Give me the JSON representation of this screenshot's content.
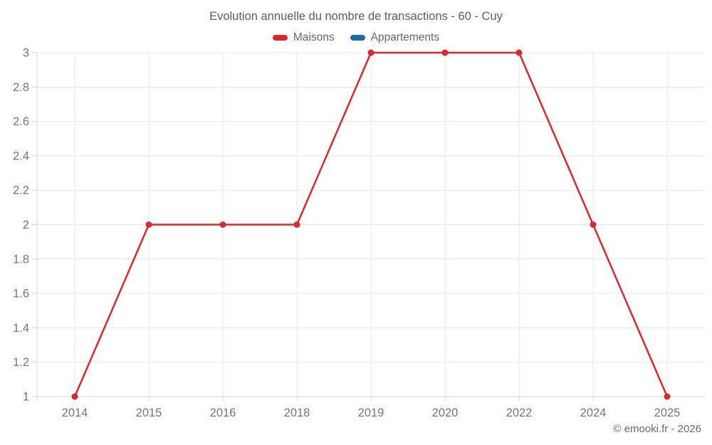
{
  "title": "Evolution annuelle du nombre de transactions - 60 - Cuy",
  "legend": {
    "items": [
      {
        "label": "Maisons",
        "color": "#db282c"
      },
      {
        "label": "Appartements",
        "color": "#1a6ca8"
      }
    ]
  },
  "copyright": "© emooki.fr - 2026",
  "colors": {
    "maisons": "#db282c",
    "appartements": "#1a6ca8",
    "gridline": "#e8e8e8",
    "axis_line": "#d6d6d6",
    "tick_label": "#757575",
    "title_text": "#5c5c5c",
    "legend_text": "#666666",
    "copyright_text": "#6b6b6b"
  },
  "chart_data": {
    "type": "line",
    "title": "Evolution annuelle du nombre de transactions - 60 - Cuy",
    "categories": [
      "2014",
      "2015",
      "2016",
      "2018",
      "2019",
      "2020",
      "2022",
      "2024",
      "2025"
    ],
    "series": [
      {
        "name": "Maisons",
        "color": "#db282c",
        "values": [
          1,
          2,
          2,
          2,
          3,
          3,
          3,
          2,
          1
        ]
      },
      {
        "name": "Appartements",
        "color": "#1a6ca8",
        "values": []
      }
    ],
    "xlabel": "",
    "ylabel": "",
    "ylim": [
      1,
      3
    ],
    "yticks": [
      1,
      1.2,
      1.4,
      1.6,
      1.8,
      2,
      2.2,
      2.4,
      2.6,
      2.8,
      3
    ],
    "ytick_labels": [
      "1",
      "1.2",
      "1.4",
      "1.6",
      "1.8",
      "2",
      "2.2",
      "2.4",
      "2.6",
      "2.8",
      "3"
    ],
    "grid": true,
    "legend_position": "top",
    "marker": "circle",
    "annotations": [
      "© emooki.fr - 2026"
    ]
  }
}
